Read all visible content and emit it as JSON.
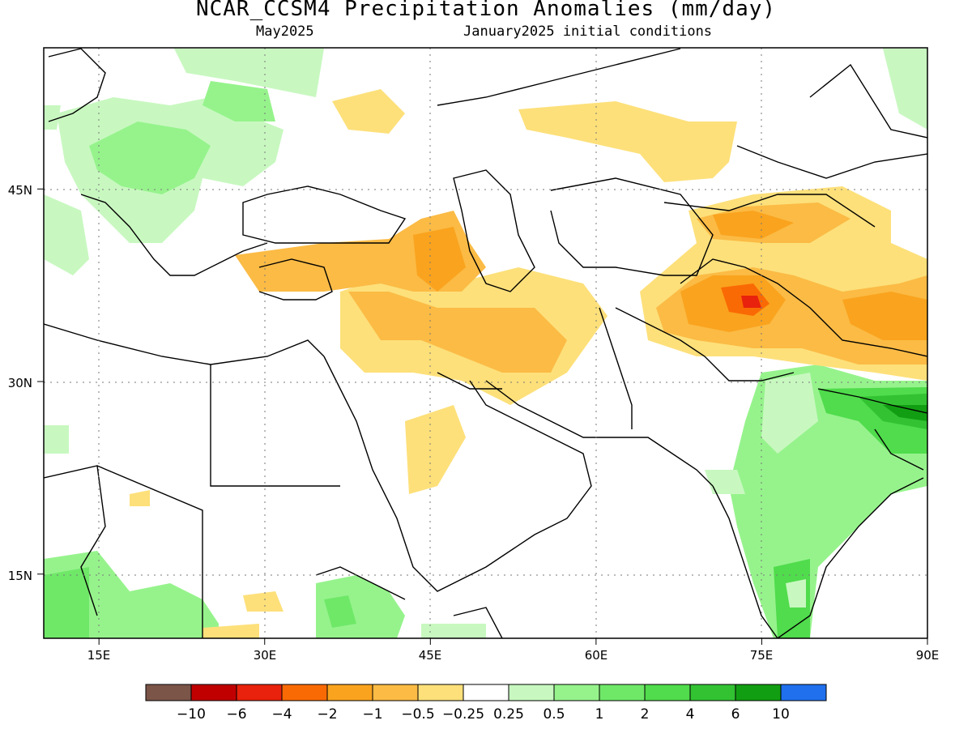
{
  "title": "NCAR_CCSM4 Precipitation Anomalies (mm/day)",
  "subtitle_left": "May2025",
  "subtitle_right": "January2025 initial conditions",
  "map": {
    "lon_range": [
      10,
      90
    ],
    "lat_range": [
      10,
      56
    ],
    "x_ticks": [
      "15E",
      "30E",
      "45E",
      "60E",
      "75E",
      "90E"
    ],
    "x_tick_values": [
      15,
      30,
      45,
      60,
      75,
      90
    ],
    "y_ticks": [
      "45N",
      "30N",
      "15N"
    ],
    "y_tick_values": [
      45,
      30,
      15
    ],
    "grid": "dotted"
  },
  "colorbar": {
    "colors": [
      "#7a5548",
      "#c00000",
      "#e8220c",
      "#fa6a04",
      "#faa31e",
      "#fbbb45",
      "#fde07a",
      "#ffffff",
      "#c8f8c0",
      "#96f38c",
      "#6fe868",
      "#50dc4c",
      "#32c232",
      "#129e12",
      "#2070ee"
    ],
    "labels": [
      "−10",
      "−6",
      "−4",
      "−2",
      "−1",
      "−0.5",
      "−0.25",
      "0.25",
      "0.5",
      "1",
      "2",
      "4",
      "6",
      "10"
    ]
  },
  "anomaly_regions": [
    {
      "name": "iran-west-dry",
      "level": "−1",
      "color": "#fbbb45",
      "lon_range": [
        26,
        50
      ],
      "lat_range": [
        36,
        42
      ]
    },
    {
      "name": "iraq-dry",
      "level": "−0.5",
      "color": "#fde07a",
      "lon_range": [
        35,
        60
      ],
      "lat_range": [
        26,
        38
      ]
    },
    {
      "name": "tibet-dry",
      "level": "−1",
      "color": "#faa31e",
      "lon_range": [
        65,
        90
      ],
      "lat_range": [
        32,
        45
      ]
    },
    {
      "name": "kashmir-dry",
      "level": "−2",
      "color": "#fa6a04",
      "lon_range": [
        72,
        76
      ],
      "lat_range": [
        35,
        37
      ]
    },
    {
      "name": "india-wet",
      "level": "1",
      "color": "#96f38c",
      "lon_range": [
        75,
        90
      ],
      "lat_range": [
        10,
        31
      ]
    },
    {
      "name": "bangladesh-wet",
      "level": "4",
      "color": "#32c232",
      "lon_range": [
        84,
        90
      ],
      "lat_range": [
        25,
        29
      ]
    },
    {
      "name": "balkans-wet",
      "level": "0.5",
      "color": "#c8f8c0",
      "lon_range": [
        14,
        33
      ],
      "lat_range": [
        42,
        56
      ]
    },
    {
      "name": "africa-south-wet",
      "level": "1",
      "color": "#96f38c",
      "lon_range": [
        10,
        50
      ],
      "lat_range": [
        10,
        17
      ]
    }
  ]
}
